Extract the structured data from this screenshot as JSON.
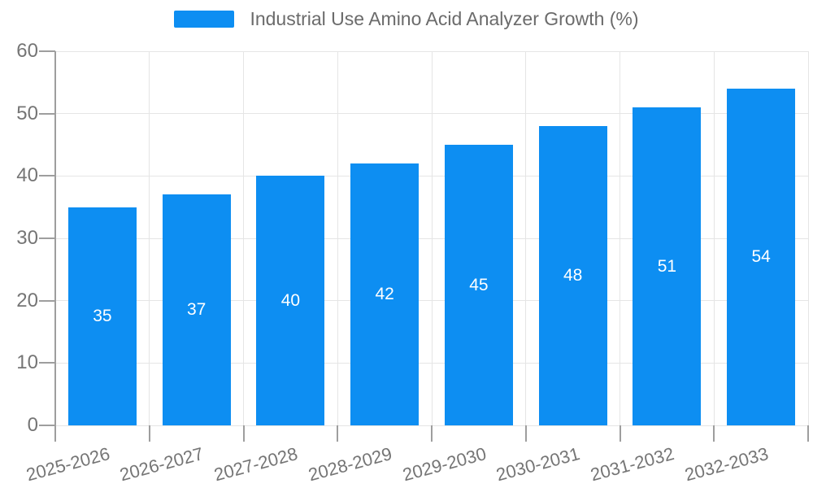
{
  "legend": {
    "items": [
      {
        "label": "Industrial Use Amino Acid Analyzer Growth (%)",
        "color": "#0d8ef2"
      }
    ]
  },
  "chart_data": {
    "type": "bar",
    "title": "Industrial Use Amino Acid Analyzer Growth (%)",
    "categories": [
      "2025-2026",
      "2026-2027",
      "2027-2028",
      "2028-2029",
      "2029-2030",
      "2030-2031",
      "2031-2032",
      "2032-2033"
    ],
    "series": [
      {
        "name": "Industrial Use Amino Acid Analyzer Growth (%)",
        "values": [
          35,
          37,
          40,
          42,
          45,
          48,
          51,
          54
        ]
      }
    ],
    "value_labels_shown": true,
    "xlabel": "",
    "ylabel": "",
    "ylim": [
      0,
      60
    ],
    "yticks": [
      0,
      10,
      20,
      30,
      40,
      50,
      60
    ],
    "grid": true,
    "legend_position": "top-center",
    "x_tick_rotation_deg": -15
  },
  "colors": {
    "bar": "#0d8ef2",
    "grid": "#e5e5e5",
    "axis": "#9e9e9e",
    "tick_label": "#757575",
    "legend_text": "#6b6b6b",
    "value_label": "#ffffff",
    "background": "#ffffff"
  }
}
